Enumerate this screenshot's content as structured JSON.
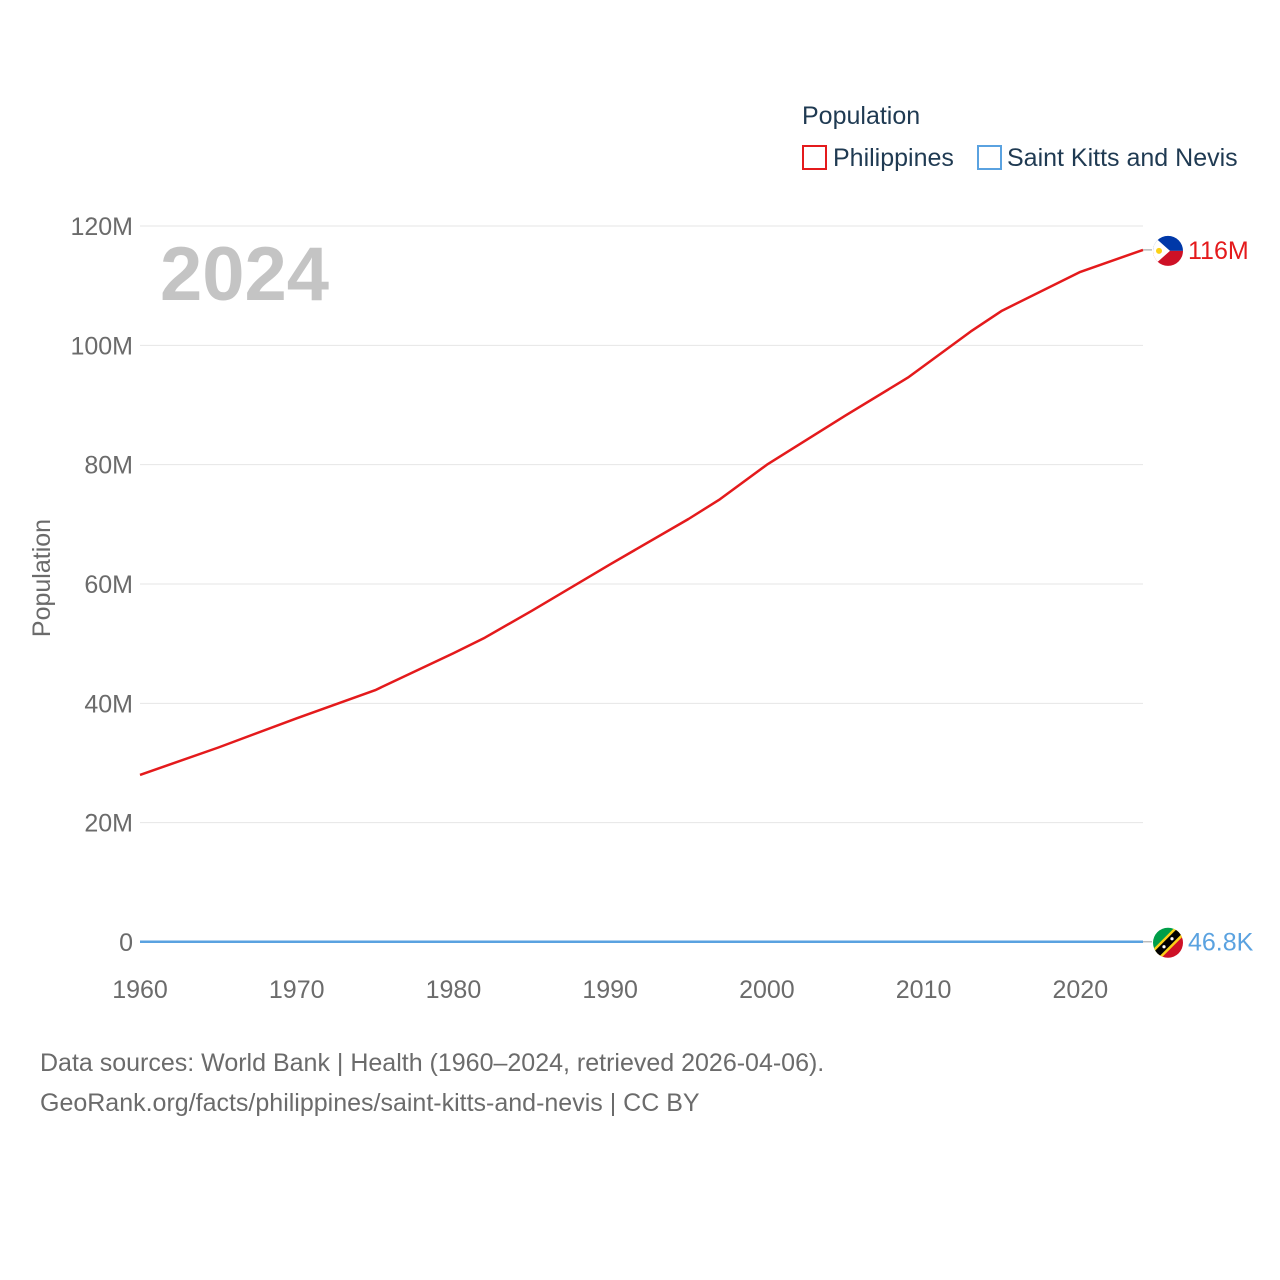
{
  "chart_data": {
    "type": "line",
    "year_label": "2024",
    "ylabel": "Population",
    "legend": {
      "title": "Population",
      "placement": "top-right"
    },
    "xlim": [
      1960,
      2024
    ],
    "ylim": [
      0,
      120000000
    ],
    "x_ticks": [
      "1960",
      "1970",
      "1980",
      "1990",
      "2000",
      "2010",
      "2020"
    ],
    "y_ticks": [
      "0",
      "20M",
      "40M",
      "60M",
      "80M",
      "100M",
      "120M"
    ],
    "grid": true,
    "series": [
      {
        "name": "Philippines",
        "color": "#e41a1c",
        "end_label": "116M",
        "flag_icon": "philippines-flag-icon",
        "points": [
          [
            1960,
            28000000
          ],
          [
            1965,
            32600000
          ],
          [
            1970,
            37500000
          ],
          [
            1975,
            42200000
          ],
          [
            1980,
            48400000
          ],
          [
            1982,
            51000000
          ],
          [
            1985,
            55500000
          ],
          [
            1990,
            63300000
          ],
          [
            1995,
            70900000
          ],
          [
            1997,
            74200000
          ],
          [
            2000,
            80000000
          ],
          [
            2005,
            88200000
          ],
          [
            2009,
            94600000
          ],
          [
            2013,
            102300000
          ],
          [
            2015,
            105800000
          ],
          [
            2020,
            112300000
          ],
          [
            2024,
            116000000
          ]
        ]
      },
      {
        "name": "Saint Kitts and Nevis",
        "color": "#5aa2e0",
        "end_label": "46.8K",
        "flag_icon": "saint-kitts-and-nevis-flag-icon",
        "points": [
          [
            1960,
            51000
          ],
          [
            1965,
            49500
          ],
          [
            1970,
            45000
          ],
          [
            1975,
            43500
          ],
          [
            1980,
            43000
          ],
          [
            1985,
            41500
          ],
          [
            1990,
            41000
          ],
          [
            1995,
            42000
          ],
          [
            2000,
            44000
          ],
          [
            2005,
            46500
          ],
          [
            2010,
            47500
          ],
          [
            2015,
            47200
          ],
          [
            2020,
            47000
          ],
          [
            2024,
            46800
          ]
        ]
      }
    ]
  },
  "footer": {
    "line1": "Data sources: World Bank | Health (1960–2024, retrieved 2026-04-06).",
    "line2": "GeoRank.org/facts/philippines/saint-kitts-and-nevis | CC BY"
  }
}
